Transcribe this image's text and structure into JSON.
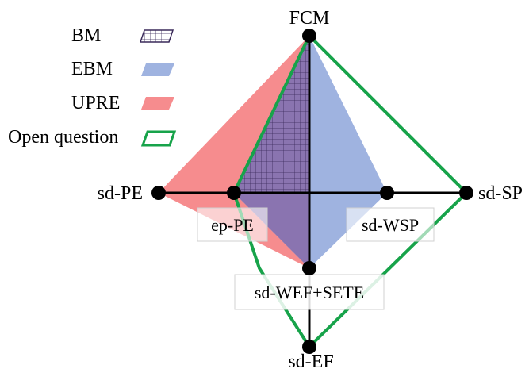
{
  "legend": {
    "items": [
      {
        "label": "BM",
        "swatch": "grid",
        "color": "#3a2a5a"
      },
      {
        "label": "EBM",
        "swatch": "fill",
        "color": "#9fb3e0"
      },
      {
        "label": "UPRE",
        "swatch": "fill",
        "color": "#f68c8e"
      },
      {
        "label": "Open question",
        "swatch": "outline",
        "color": "#17a34a"
      }
    ]
  },
  "nodes": {
    "top": "FCM",
    "left_outer": "sd-PE",
    "left_inner": "ep-PE",
    "right_inner": "sd-WSP",
    "right_outer": "sd-SP",
    "bottom_inner": "sd-WEF+SETE",
    "bottom_outer": "sd-EF"
  },
  "colors": {
    "upre": "#f68c8e",
    "ebm": "#9fb3e0",
    "bm_overlap": "#8a74b0",
    "open_question": "#17a34a",
    "node": "#000000"
  }
}
